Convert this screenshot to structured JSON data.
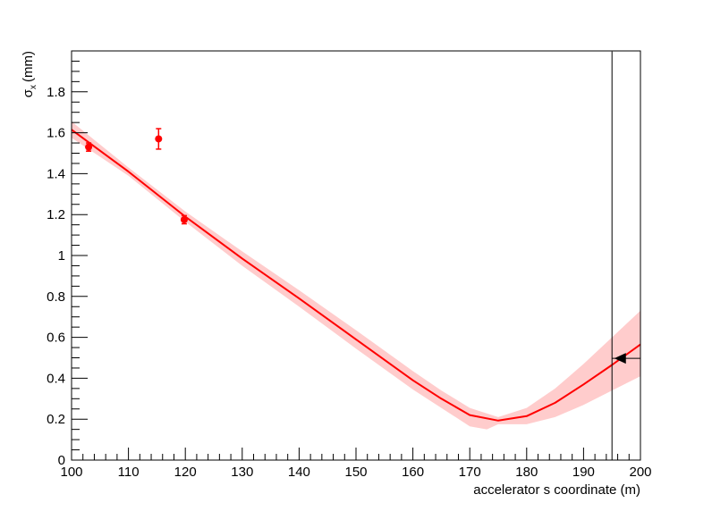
{
  "chart_data": {
    "type": "scatter",
    "xlabel": "accelerator s coordinate (m)",
    "ylabel": {
      "symbol": "σ",
      "subscript": "x",
      "unit": "(mm)"
    },
    "xlim": [
      100,
      200
    ],
    "ylim": [
      0,
      2.0
    ],
    "x_major_ticks": [
      100,
      110,
      120,
      130,
      140,
      150,
      160,
      170,
      180,
      190,
      200
    ],
    "y_major_ticks": [
      0,
      0.2,
      0.4,
      0.6,
      0.8,
      1,
      1.2,
      1.4,
      1.6,
      1.8
    ],
    "x_tick_labels": [
      "100",
      "110",
      "120",
      "130",
      "140",
      "150",
      "160",
      "170",
      "180",
      "190",
      "200"
    ],
    "y_tick_labels": [
      "0",
      "0.2",
      "0.4",
      "0.6",
      "0.8",
      "1",
      "1.2",
      "1.4",
      "1.6",
      "1.8"
    ],
    "grid": false,
    "measured_points": {
      "color": "#ff0000",
      "points": [
        {
          "x": 103.0,
          "y": 1.53,
          "yerr": 0.02,
          "xerr": 0.3
        },
        {
          "x": 115.3,
          "y": 1.57,
          "yerr": 0.05,
          "xerr": 0.3
        },
        {
          "x": 119.8,
          "y": 1.175,
          "yerr": 0.02,
          "xerr": 0.3
        }
      ]
    },
    "fit_curve": {
      "color": "#ff0000",
      "points": [
        [
          100,
          1.615
        ],
        [
          110,
          1.41
        ],
        [
          120,
          1.19
        ],
        [
          130,
          0.985
        ],
        [
          140,
          0.79
        ],
        [
          150,
          0.59
        ],
        [
          160,
          0.39
        ],
        [
          165,
          0.3
        ],
        [
          170,
          0.22
        ],
        [
          175,
          0.193
        ],
        [
          180,
          0.215
        ],
        [
          185,
          0.28
        ],
        [
          190,
          0.37
        ],
        [
          195,
          0.465
        ],
        [
          200,
          0.565
        ]
      ]
    },
    "fit_band": {
      "color": "#ffcccc",
      "upper": [
        [
          100,
          1.655
        ],
        [
          110,
          1.43
        ],
        [
          120,
          1.215
        ],
        [
          130,
          1.02
        ],
        [
          140,
          0.83
        ],
        [
          150,
          0.635
        ],
        [
          160,
          0.435
        ],
        [
          165,
          0.34
        ],
        [
          170,
          0.255
        ],
        [
          175,
          0.21
        ],
        [
          180,
          0.255
        ],
        [
          185,
          0.35
        ],
        [
          190,
          0.47
        ],
        [
          195,
          0.6
        ],
        [
          200,
          0.73
        ]
      ],
      "lower": [
        [
          100,
          1.575
        ],
        [
          110,
          1.39
        ],
        [
          120,
          1.165
        ],
        [
          130,
          0.95
        ],
        [
          140,
          0.75
        ],
        [
          150,
          0.545
        ],
        [
          160,
          0.345
        ],
        [
          165,
          0.255
        ],
        [
          170,
          0.165
        ],
        [
          173,
          0.15
        ],
        [
          175,
          0.175
        ],
        [
          180,
          0.175
        ],
        [
          185,
          0.21
        ],
        [
          190,
          0.27
        ],
        [
          195,
          0.34
        ],
        [
          200,
          0.41
        ]
      ]
    },
    "reference_point": {
      "color": "#000000",
      "x": 196.5,
      "y": 0.497,
      "x_err_low": 1.5,
      "x_err_high": 3.5,
      "y_err_low": 0.497,
      "y_err_high": 1.5
    }
  }
}
